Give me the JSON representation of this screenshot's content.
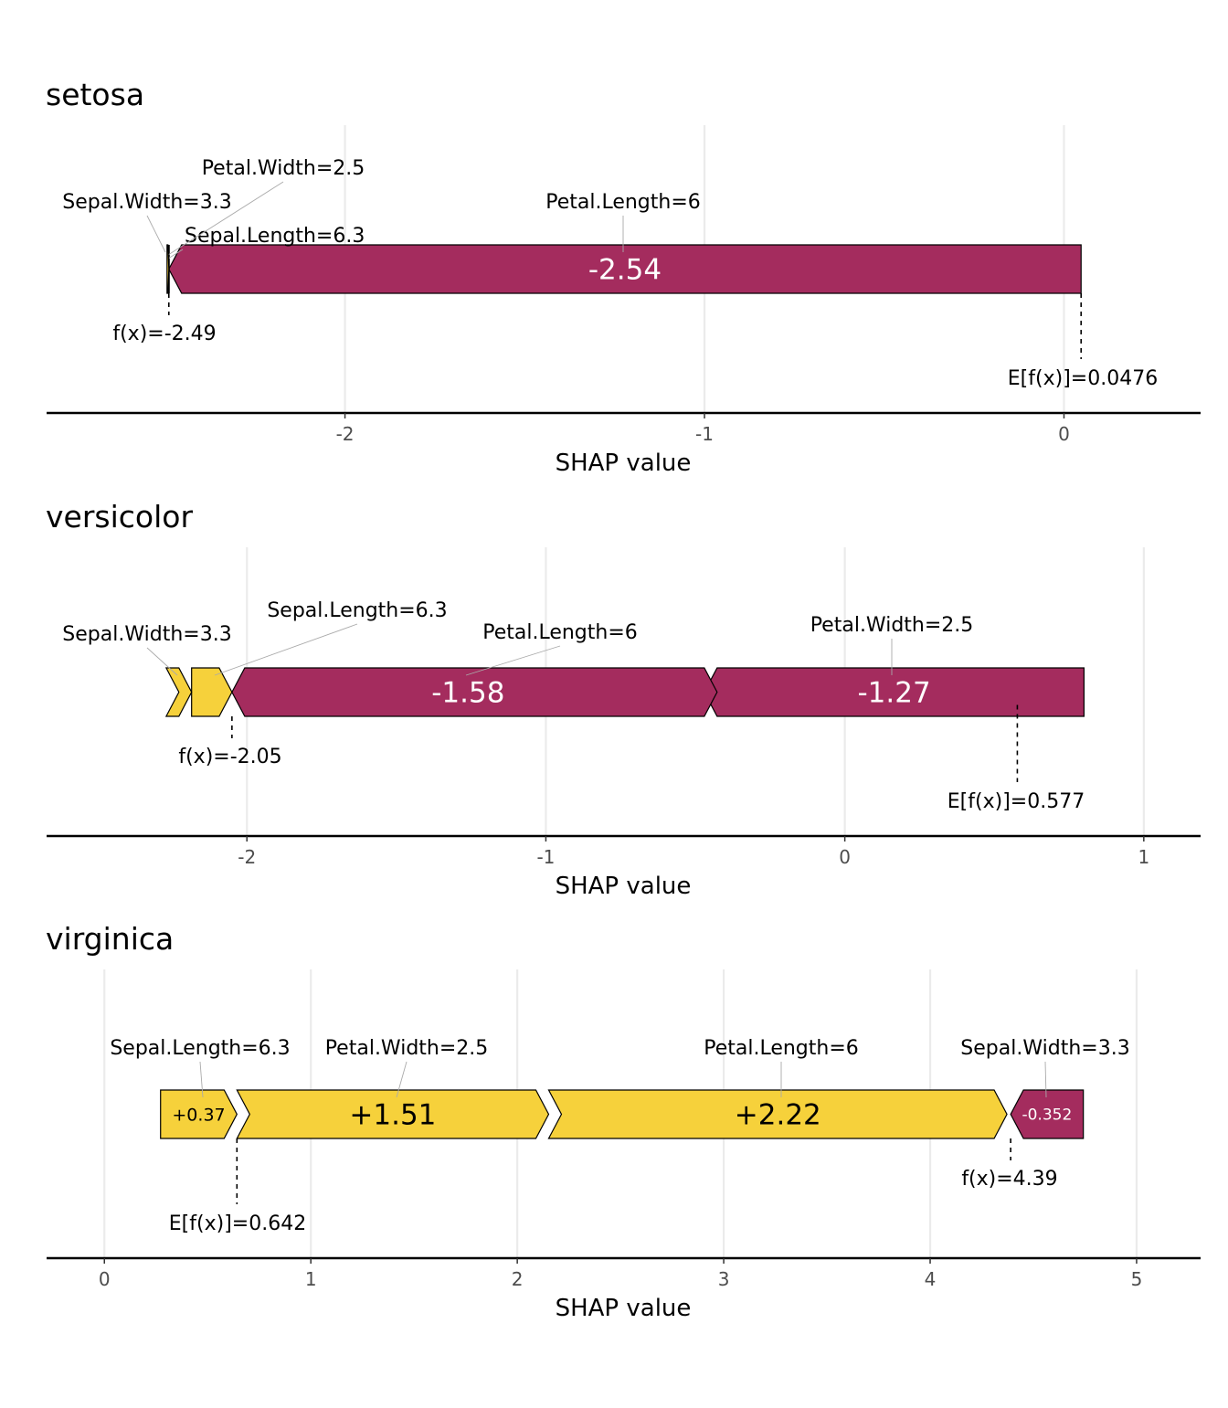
{
  "chart_data": [
    {
      "type": "force",
      "title": "setosa",
      "xlabel": "SHAP value",
      "xlim": [
        -2.83,
        0.38
      ],
      "ticks": [
        -2,
        -1,
        0
      ],
      "tick_labels": [
        "-2",
        "-1",
        "0"
      ],
      "fx": -2.49,
      "fx_label": "f(x)=-2.49",
      "efx": 0.0476,
      "efx_label": "E[f(x)]=0.0476",
      "contributions": [
        {
          "feature": "Petal.Length=6",
          "value": -2.54,
          "start": 0.0476,
          "end": -2.49,
          "show_value": "-2.54",
          "value_size": "large"
        },
        {
          "feature": "Sepal.Length=6.3",
          "value": -0.003,
          "start": -2.49,
          "end": -2.493,
          "show_value": "",
          "value_size": "none"
        },
        {
          "feature": "Petal.Width=2.5",
          "value": -0.002,
          "start": -2.493,
          "end": -2.495,
          "show_value": "",
          "value_size": "none"
        },
        {
          "feature": "Sepal.Width=3.3",
          "value": 0.005,
          "start": -2.495,
          "end": -2.49,
          "show_value": "",
          "value_size": "none"
        }
      ]
    },
    {
      "type": "force",
      "title": "versicolor",
      "xlabel": "SHAP value",
      "xlim": [
        -2.67,
        1.19
      ],
      "ticks": [
        -2,
        -1,
        0,
        1
      ],
      "tick_labels": [
        "-2",
        "-1",
        "0",
        "1"
      ],
      "fx": -2.05,
      "fx_label": "f(x)=-2.05",
      "efx": 0.577,
      "efx_label": "E[f(x)]=0.577",
      "contributions": [
        {
          "feature": "Petal.Width=2.5",
          "value": -1.27,
          "start": 0.8,
          "end": -0.47,
          "show_value": "-1.27",
          "value_size": "large"
        },
        {
          "feature": "Petal.Length=6",
          "value": -1.58,
          "start": -0.47,
          "end": -2.05,
          "show_value": "-1.58",
          "value_size": "large"
        },
        {
          "feature": "Sepal.Length=6.3",
          "value": 0.135,
          "start": -2.185,
          "end": -2.05,
          "show_value": "",
          "value_size": "none"
        },
        {
          "feature": "Sepal.Width=3.3",
          "value": 0.085,
          "start": -2.27,
          "end": -2.185,
          "show_value": "",
          "value_size": "none"
        }
      ]
    },
    {
      "type": "force",
      "title": "virginica",
      "xlabel": "SHAP value",
      "xlim": [
        -0.28,
        5.31
      ],
      "ticks": [
        0,
        1,
        2,
        3,
        4,
        5
      ],
      "tick_labels": [
        "0",
        "1",
        "2",
        "3",
        "4",
        "5"
      ],
      "fx": 4.39,
      "fx_label": "f(x)=4.39",
      "efx": 0.642,
      "efx_label": "E[f(x)]=0.642",
      "contributions": [
        {
          "feature": "Sepal.Length=6.3",
          "value": 0.37,
          "start": 0.272,
          "end": 0.642,
          "show_value": "+0.37",
          "value_size": "small"
        },
        {
          "feature": "Petal.Width=2.5",
          "value": 1.51,
          "start": 0.642,
          "end": 2.152,
          "show_value": "+1.51",
          "value_size": "large"
        },
        {
          "feature": "Petal.Length=6",
          "value": 2.22,
          "start": 2.152,
          "end": 4.372,
          "show_value": "+2.22",
          "value_size": "large"
        },
        {
          "feature": "Sepal.Width=3.3",
          "value": -0.352,
          "start": 4.742,
          "end": 4.39,
          "show_value": "-0.352",
          "value_size": "tiny"
        }
      ]
    }
  ],
  "colors": {
    "positive": "#f6d13b",
    "negative": "#a42c5e",
    "grid": "#ebebeb",
    "axis": "#000000",
    "tick_text": "#4d4d4d"
  }
}
